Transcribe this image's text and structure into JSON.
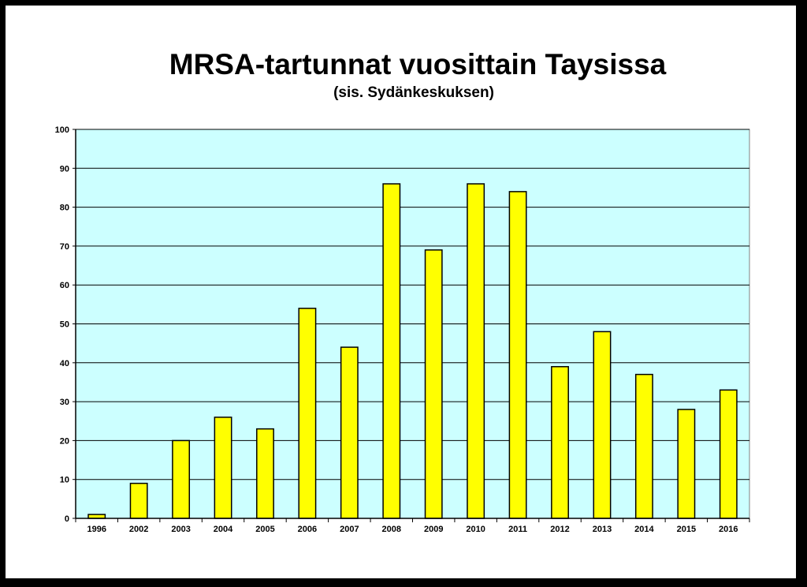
{
  "title": "MRSA-tartunnat vuosittain Taysissa",
  "subtitle": "(sis. Sydänkeskuksen)",
  "colors": {
    "plot_bg": "#ccffff",
    "bar_fill": "#ffff00",
    "bar_stroke": "#000000",
    "gridline": "#000000"
  },
  "chart_data": {
    "type": "bar",
    "title": "MRSA-tartunnat vuosittain Taysissa",
    "subtitle": "(sis. Sydänkeskuksen)",
    "xlabel": "",
    "ylabel": "",
    "categories": [
      "1996",
      "2002",
      "2003",
      "2004",
      "2005",
      "2006",
      "2007",
      "2008",
      "2009",
      "2010",
      "2011",
      "2012",
      "2013",
      "2014",
      "2015",
      "2016"
    ],
    "values": [
      1,
      9,
      20,
      26,
      23,
      54,
      44,
      86,
      69,
      86,
      84,
      39,
      48,
      37,
      28,
      33
    ],
    "ylim": [
      0,
      100
    ],
    "yticks": [
      "0",
      "10",
      "20",
      "30",
      "40",
      "50",
      "60",
      "70",
      "80",
      "90",
      "100"
    ],
    "grid": true,
    "legend": "none"
  }
}
